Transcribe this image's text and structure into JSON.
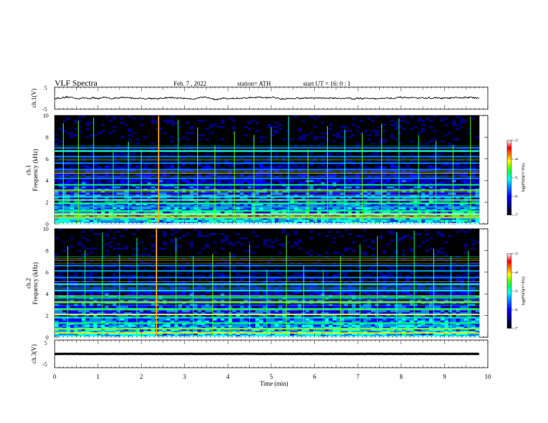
{
  "header": {
    "title": "VLF  Spectra",
    "date": "Feb. 7  , 2022",
    "station": "station= ATH",
    "start": "start  UT  =   16: 0  : 1"
  },
  "colors": {
    "colormap": [
      "#000000",
      "#00007a",
      "#0000ff",
      "#0088ff",
      "#00ffff",
      "#00ff66",
      "#66ff00",
      "#ffff00",
      "#ff8800",
      "#ff0000",
      "#ffffff"
    ],
    "trace": "#000000"
  },
  "chart_data": [
    {
      "type": "line",
      "name": "ch1-waveform",
      "ylabel": "ch.1(V)",
      "ylim": [
        -5,
        5
      ],
      "yticks": [
        "5",
        "-5"
      ],
      "xlim": [
        0,
        10
      ],
      "description_values": {
        "mean": 0,
        "approx_peak_to_peak": 1.5
      }
    },
    {
      "type": "heatmap",
      "name": "ch1-spectrogram",
      "ylabel_line1": "ch.1",
      "ylabel_line2": "Frequency  (kHz)",
      "ylim": [
        0,
        10
      ],
      "yticks": [
        "0",
        "2",
        "4",
        "6",
        "8",
        "10"
      ],
      "xlim": [
        0,
        9.8
      ],
      "colorbar": {
        "label": "log(PSD)(V²/Hz)",
        "range": [
          -7,
          -3
        ],
        "ticks": [
          "-3",
          "-4",
          "-5",
          "-6",
          "-7"
        ]
      },
      "bands": [
        {
          "freq": 0.6,
          "level": -3.6
        },
        {
          "freq": 0.9,
          "level": -4.0
        },
        {
          "freq": 1.2,
          "level": -5.0
        },
        {
          "freq": 1.6,
          "level": -5.4
        },
        {
          "freq": 1.9,
          "level": -4.8
        },
        {
          "freq": 2.2,
          "level": -4.6
        },
        {
          "freq": 2.5,
          "level": -5.2
        },
        {
          "freq": 3.1,
          "level": -4.6
        },
        {
          "freq": 3.6,
          "level": -5.0
        },
        {
          "freq": 4.2,
          "level": -5.4
        },
        {
          "freq": 5.0,
          "level": -5.8
        },
        {
          "freq": 5.6,
          "level": -5.5
        },
        {
          "freq": 6.2,
          "level": -5.7
        },
        {
          "freq": 6.7,
          "level": -5.3
        },
        {
          "freq": 7.0,
          "level": -5.6
        }
      ],
      "spikes": [
        0.2,
        0.55,
        0.9,
        1.35,
        1.7,
        2.0,
        2.4,
        2.85,
        3.3,
        3.7,
        4.15,
        4.6,
        5.0,
        5.4,
        5.85,
        6.3,
        6.7,
        7.1,
        7.55,
        7.95,
        8.4,
        8.8,
        9.2,
        9.6
      ],
      "strong_spike": 2.4
    },
    {
      "type": "heatmap",
      "name": "ch2-spectrogram",
      "ylabel_line1": "ch.2",
      "ylabel_line2": "Frequency  (kHz)",
      "ylim": [
        0,
        10
      ],
      "yticks": [
        "0",
        "2",
        "4",
        "6",
        "8",
        "10"
      ],
      "xlim": [
        0,
        9.8
      ],
      "colorbar": {
        "label": "log(PSD)(V²/Hz)",
        "range": [
          -7,
          -3
        ],
        "ticks": [
          "-3",
          "-4",
          "-5",
          "-6",
          "-7"
        ]
      },
      "bands": [
        {
          "freq": 0.4,
          "level": -4.2
        },
        {
          "freq": 0.8,
          "level": -4.8
        },
        {
          "freq": 1.3,
          "level": -4.9
        },
        {
          "freq": 1.8,
          "level": -5.0
        },
        {
          "freq": 2.1,
          "level": -4.0
        },
        {
          "freq": 2.6,
          "level": -4.7
        },
        {
          "freq": 3.2,
          "level": -4.5
        },
        {
          "freq": 3.7,
          "level": -5.0
        },
        {
          "freq": 4.3,
          "level": -5.2
        },
        {
          "freq": 4.9,
          "level": -5.3
        },
        {
          "freq": 5.5,
          "level": -5.6
        },
        {
          "freq": 6.1,
          "level": -5.8
        },
        {
          "freq": 6.6,
          "level": -5.4
        }
      ],
      "spikes": [
        0.3,
        0.7,
        1.1,
        1.5,
        1.9,
        2.35,
        2.8,
        3.2,
        3.65,
        4.05,
        4.5,
        4.9,
        5.35,
        5.75,
        6.2,
        6.6,
        7.05,
        7.45,
        7.9,
        8.3,
        8.75,
        9.15,
        9.55
      ],
      "strong_spike": 2.35
    },
    {
      "type": "line",
      "name": "ch3-waveform",
      "ylabel": "ch.3(V)",
      "ylim": [
        -5,
        5
      ],
      "yticks": [
        "5",
        "-5"
      ],
      "xlim": [
        0,
        10
      ],
      "description_values": {
        "mean": 0,
        "approx_peak_to_peak": 0.4
      }
    }
  ],
  "xaxis": {
    "label": "Time  (min)",
    "ticks": [
      "0",
      "1",
      "2",
      "3",
      "4",
      "5",
      "6",
      "7",
      "8",
      "9",
      "10"
    ],
    "range": [
      0,
      10
    ]
  }
}
